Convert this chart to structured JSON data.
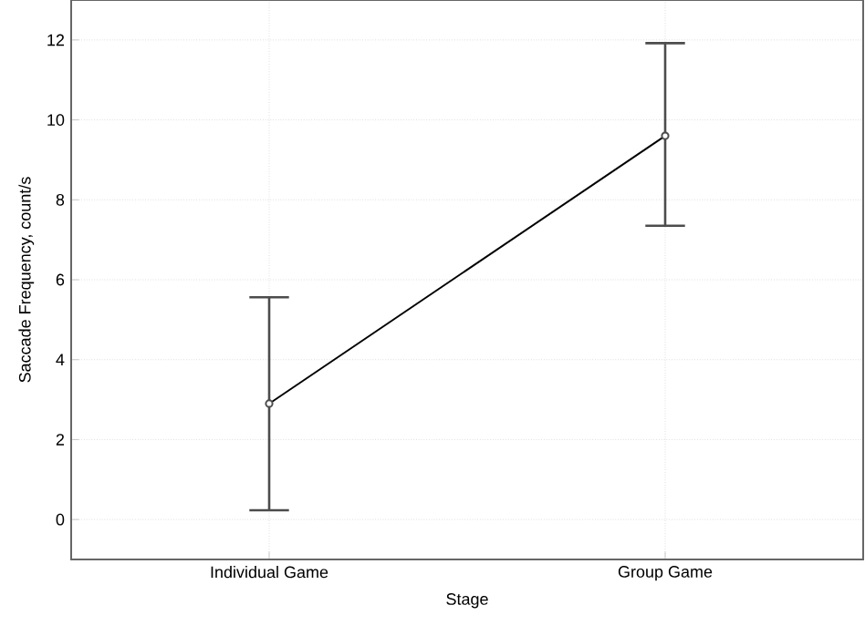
{
  "chart_data": {
    "type": "line",
    "xlabel": "Stage",
    "ylabel": "Saccade Frequency, count/s",
    "categories": [
      "Individual Game",
      "Group Game"
    ],
    "values": [
      2.9,
      9.6
    ],
    "errors": [
      [
        0.23,
        5.56
      ],
      [
        7.35,
        11.92
      ]
    ],
    "color": "#000000",
    "marker": "circle",
    "line_style": "solid",
    "grid": true,
    "ylim": [
      -1,
      13
    ],
    "yticks": [
      0,
      2,
      4,
      6,
      8,
      10,
      12
    ]
  }
}
